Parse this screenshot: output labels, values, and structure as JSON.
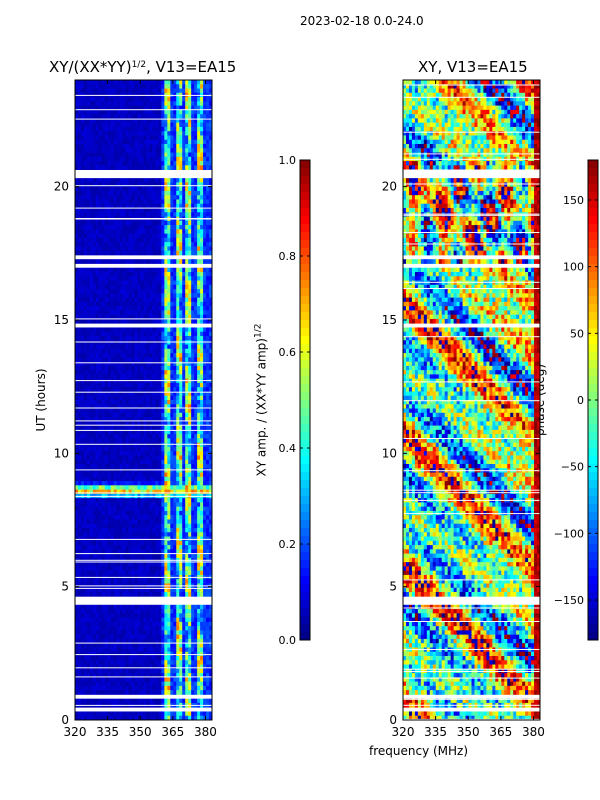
{
  "suptitle": "2023-02-18 0.0-24.0",
  "chart_data": [
    {
      "type": "heatmap",
      "title": "XY/(XX*YY)",
      "title_exp": "1/2",
      "title_suffix": ", V13=EA15",
      "xlabel": "",
      "ylabel": "UT (hours)",
      "x_ticks": [
        "320",
        "335",
        "350",
        "365",
        "380"
      ],
      "y_ticks": [
        "0",
        "5",
        "10",
        "15",
        "20"
      ],
      "xlim": [
        320,
        383
      ],
      "ylim": [
        0,
        24
      ],
      "colorbar": {
        "label": "XY amp. / (XX*YY amp)",
        "label_exp": "1/2",
        "range": [
          0.0,
          1.0
        ],
        "ticks": [
          "0.0",
          "0.2",
          "0.4",
          "0.6",
          "0.8",
          "1.0"
        ],
        "colormap": "jet"
      },
      "bright_freq_bands_mhz": [
        [
          361,
          364
        ],
        [
          366,
          369
        ],
        [
          371,
          374
        ],
        [
          376,
          379
        ]
      ],
      "peak_time_hours": 8.6,
      "gap_hours": [
        0.4,
        0.9,
        4.4,
        4.6,
        14.8,
        17.1,
        17.4,
        20.4,
        20.6
      ]
    },
    {
      "type": "heatmap",
      "title": "XY, V13=EA15",
      "xlabel": "frequency (MHz)",
      "ylabel": "",
      "x_ticks": [
        "320",
        "335",
        "350",
        "365",
        "380"
      ],
      "y_ticks": [
        "0",
        "5",
        "10",
        "15",
        "20"
      ],
      "xlim": [
        320,
        383
      ],
      "ylim": [
        0,
        24
      ],
      "colorbar": {
        "label": "phase (deg)",
        "range": [
          -180,
          180
        ],
        "ticks": [
          "150",
          "100",
          "50",
          "0",
          "−50",
          "−100",
          "−150"
        ],
        "colormap": "jet"
      },
      "gap_hours": [
        0.4,
        0.9,
        4.4,
        4.6,
        14.8,
        17.1,
        17.4,
        20.4,
        20.6
      ]
    }
  ]
}
